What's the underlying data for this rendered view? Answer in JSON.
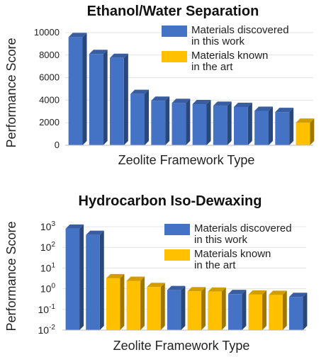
{
  "chart_data": [
    {
      "type": "bar",
      "title": "Ethanol/Water Separation",
      "xlabel": "Zeolite Framework Type",
      "ylabel": "Performance Score",
      "ylim": [
        0,
        10000
      ],
      "yticks": [
        "0",
        "2000",
        "4000",
        "6000",
        "8000",
        "10000"
      ],
      "legend_position": "top-right",
      "legend": [
        {
          "label_line1": "Materials discovered",
          "label_line2": "in this work",
          "color": "#4472c4"
        },
        {
          "label_line1": "Materials known",
          "label_line2": "in the art",
          "color": "#ffc000"
        }
      ],
      "values": [
        9600,
        8100,
        7750,
        4550,
        3950,
        3750,
        3650,
        3500,
        3400,
        3050,
        2950,
        2000
      ],
      "series_index": [
        0,
        0,
        0,
        0,
        0,
        0,
        0,
        0,
        0,
        0,
        0,
        1
      ]
    },
    {
      "type": "bar",
      "title": "Hydrocarbon Iso-Dewaxing",
      "xlabel": "Zeolite Framework Type",
      "ylabel": "Performance Score",
      "yscale": "log",
      "ylim": [
        0.01,
        1000
      ],
      "ytick_bases": [
        "10",
        "10",
        "10",
        "10",
        "10",
        "10"
      ],
      "ytick_exponents": [
        "3",
        "2",
        "1",
        "0",
        "-1",
        "-2"
      ],
      "legend_position": "top-right",
      "legend": [
        {
          "label_line1": "Materials discovered",
          "label_line2": "in this work",
          "color": "#4472c4"
        },
        {
          "label_line1": "Materials known",
          "label_line2": "in the art",
          "color": "#ffc000"
        }
      ],
      "values": [
        800,
        400,
        3.2,
        2.4,
        1.2,
        0.85,
        0.75,
        0.72,
        0.55,
        0.52,
        0.5,
        0.4
      ],
      "series_index": [
        0,
        0,
        1,
        1,
        1,
        0,
        1,
        1,
        0,
        1,
        1,
        0
      ]
    }
  ]
}
